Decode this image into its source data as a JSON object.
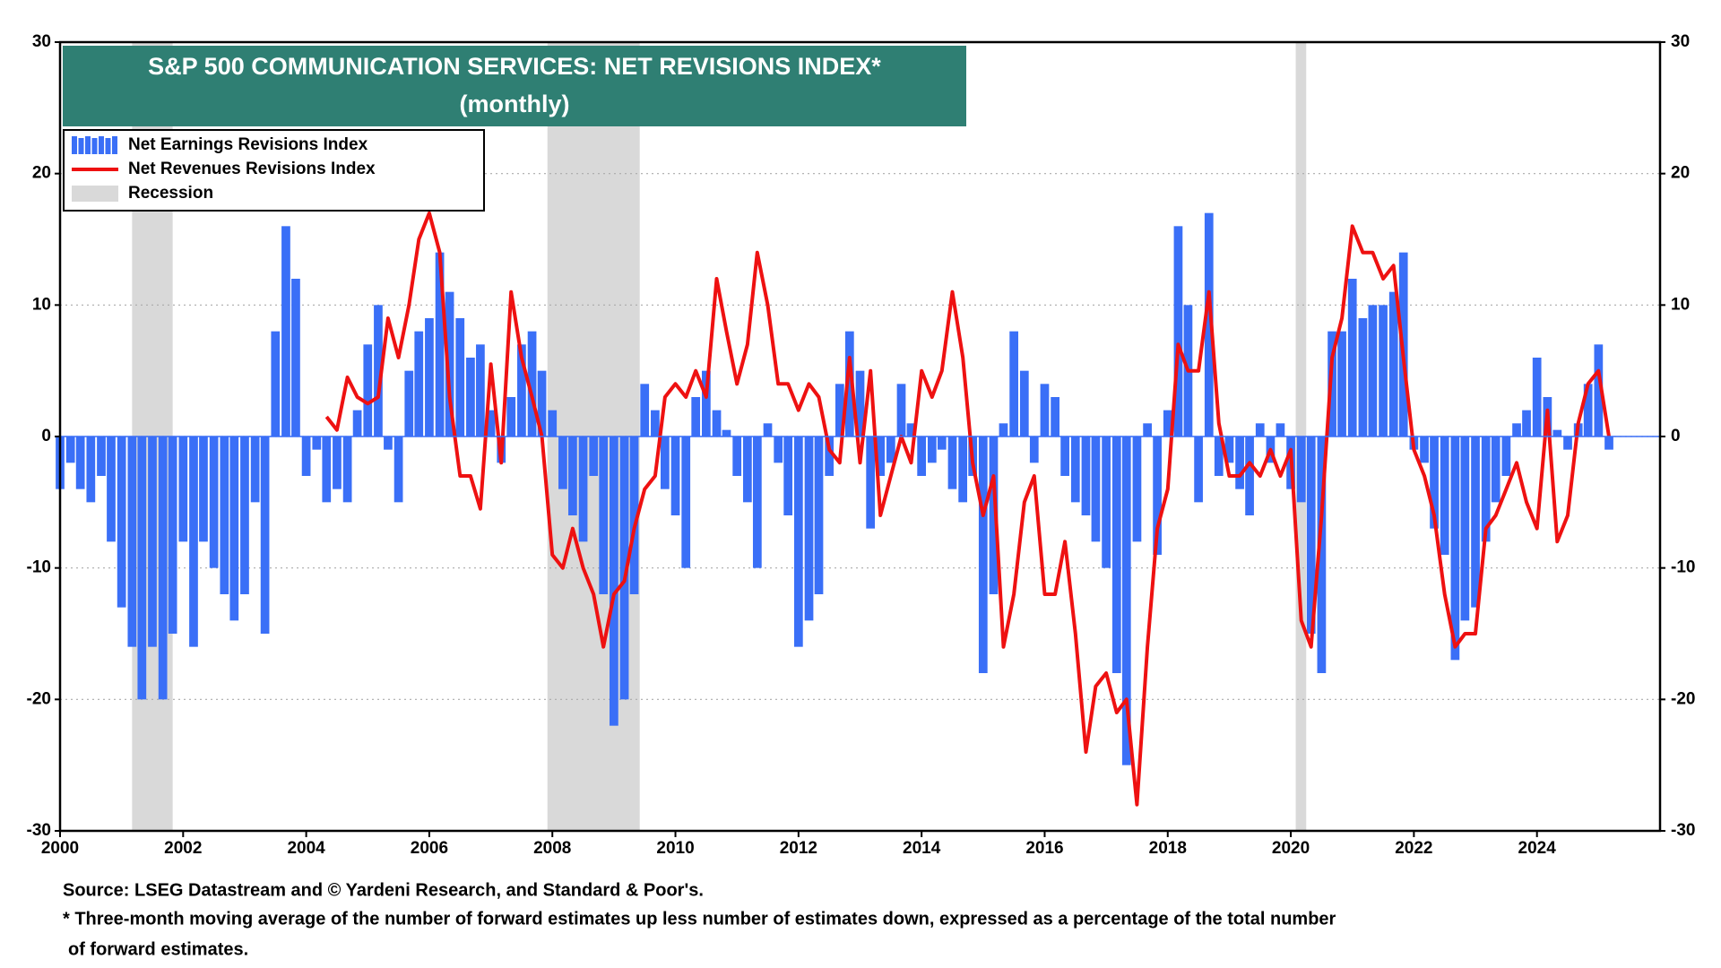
{
  "chart_data": {
    "type": "bar_line",
    "title": "S&P 500 COMMUNICATION SERVICES: NET REVISIONS INDEX*",
    "subtitle": "(monthly)",
    "source": "Source: LSEG Datastream and © Yardeni Research, and Standard & Poor's.",
    "footnote": [
      "* Three-month moving average of the number of forward estimates up less number of estimates down, expressed as a percentage of the total number",
      "of forward estimates."
    ],
    "recession_label": "Recession",
    "recessions": [
      [
        2001.17,
        2001.83
      ],
      [
        2007.92,
        2009.42
      ],
      [
        2020.08,
        2020.25
      ]
    ],
    "recession_color": "#d9d9d9",
    "xlim": [
      2000,
      2026
    ],
    "xticks": [
      2000,
      2002,
      2004,
      2006,
      2008,
      2010,
      2012,
      2014,
      2016,
      2018,
      2020,
      2022,
      2024
    ],
    "ylim": [
      -30,
      30
    ],
    "yticks": [
      -30,
      -20,
      -10,
      0,
      10,
      20,
      30
    ],
    "y2lim": [
      -30,
      30
    ],
    "y2ticks": [
      -30,
      -20,
      -10,
      0,
      10,
      20,
      30
    ],
    "grid": true,
    "x": [
      2000,
      2000.17,
      2000.33,
      2000.5,
      2000.67,
      2000.83,
      2001,
      2001.17,
      2001.33,
      2001.5,
      2001.67,
      2001.83,
      2002,
      2002.17,
      2002.33,
      2002.5,
      2002.67,
      2002.83,
      2003,
      2003.17,
      2003.33,
      2003.5,
      2003.67,
      2003.83,
      2004,
      2004.17,
      2004.33,
      2004.5,
      2004.67,
      2004.83,
      2005,
      2005.17,
      2005.33,
      2005.5,
      2005.67,
      2005.83,
      2006,
      2006.17,
      2006.33,
      2006.5,
      2006.67,
      2006.83,
      2007,
      2007.17,
      2007.33,
      2007.5,
      2007.67,
      2007.83,
      2008,
      2008.17,
      2008.33,
      2008.5,
      2008.67,
      2008.83,
      2009,
      2009.17,
      2009.33,
      2009.5,
      2009.67,
      2009.83,
      2010,
      2010.17,
      2010.33,
      2010.5,
      2010.67,
      2010.83,
      2011,
      2011.17,
      2011.33,
      2011.5,
      2011.67,
      2011.83,
      2012,
      2012.17,
      2012.33,
      2012.5,
      2012.67,
      2012.83,
      2013,
      2013.17,
      2013.33,
      2013.5,
      2013.67,
      2013.83,
      2014,
      2014.17,
      2014.33,
      2014.5,
      2014.67,
      2014.83,
      2015,
      2015.17,
      2015.33,
      2015.5,
      2015.67,
      2015.83,
      2016,
      2016.17,
      2016.33,
      2016.5,
      2016.67,
      2016.83,
      2017,
      2017.17,
      2017.33,
      2017.5,
      2017.67,
      2017.83,
      2018,
      2018.17,
      2018.33,
      2018.5,
      2018.67,
      2018.83,
      2019,
      2019.17,
      2019.33,
      2019.5,
      2019.67,
      2019.83,
      2020,
      2020.17,
      2020.33,
      2020.5,
      2020.67,
      2020.83,
      2021,
      2021.17,
      2021.33,
      2021.5,
      2021.67,
      2021.83,
      2022,
      2022.17,
      2022.33,
      2022.5,
      2022.67,
      2022.83,
      2023,
      2023.17,
      2023.33,
      2023.5,
      2023.67,
      2023.83,
      2024,
      2024.17,
      2024.33,
      2024.5,
      2024.67,
      2024.83,
      2025,
      2025.17
    ],
    "series": [
      {
        "name": "Net Earnings Revisions Index",
        "kind": "bar",
        "color": "#3a6ff7",
        "values": [
          -4,
          -2,
          -4,
          -5,
          -3,
          -8,
          -13,
          -16,
          -20,
          -16,
          -20,
          -15,
          -8,
          -16,
          -8,
          -10,
          -12,
          -14,
          -12,
          -5,
          -15,
          8,
          16,
          12,
          -3,
          -1,
          -5,
          -4,
          -5,
          2,
          7,
          10,
          -1,
          -5,
          5,
          8,
          9,
          14,
          11,
          9,
          6,
          7,
          2,
          -2,
          3,
          7,
          8,
          5,
          2,
          -4,
          -6,
          -8,
          -3,
          -12,
          -22,
          -20,
          -12,
          4,
          2,
          -4,
          -6,
          -10,
          3,
          5,
          2,
          0.5,
          -3,
          -5,
          -10,
          1,
          -2,
          -6,
          -16,
          -14,
          -12,
          -3,
          4,
          8,
          5,
          -7,
          -3,
          -2,
          4,
          1,
          -3,
          -2,
          -1,
          -4,
          -5,
          -3,
          -18,
          -12,
          1,
          8,
          5,
          -2,
          4,
          3,
          -3,
          -5,
          -6,
          -8,
          -10,
          -18,
          -25,
          -8,
          1,
          -9,
          2,
          16,
          10,
          -5,
          17,
          -3,
          -2,
          -4,
          -6,
          1,
          -2,
          1,
          -4,
          -5,
          -15,
          -18,
          8,
          8,
          12,
          9,
          10,
          10,
          11,
          14,
          -1,
          -2,
          -7,
          -9,
          -17,
          -14,
          -13,
          -8,
          -5,
          -3,
          1,
          2,
          6,
          3,
          0.5,
          -1,
          1,
          4,
          7,
          -1
        ]
      },
      {
        "name": "Net Revenues Revisions Index",
        "kind": "line",
        "color": "#ee1111",
        "values": [
          null,
          null,
          null,
          null,
          null,
          null,
          null,
          null,
          null,
          null,
          null,
          null,
          null,
          null,
          null,
          null,
          null,
          null,
          null,
          null,
          null,
          null,
          null,
          null,
          null,
          null,
          1.5,
          0.5,
          4.5,
          3,
          2.5,
          3,
          9,
          6,
          10,
          15,
          17,
          14,
          3,
          -3,
          -3,
          -5.5,
          5.5,
          -2,
          11,
          6,
          3,
          0,
          -9,
          -10,
          -7,
          -10,
          -12,
          -16,
          -12,
          -11,
          -7,
          -4,
          -3,
          3,
          4,
          3,
          5,
          3,
          12,
          8,
          4,
          7,
          14,
          10,
          4,
          4,
          2,
          4,
          3,
          -1,
          -2,
          6,
          -2,
          5,
          -6,
          -3,
          0,
          -2,
          5,
          3,
          5,
          11,
          6,
          -2,
          -6,
          -3,
          -16,
          -12,
          -5,
          -3,
          -12,
          -12,
          -8,
          -15,
          -24,
          -19,
          -18,
          -21,
          -20,
          -28,
          -16,
          -7,
          -4,
          7,
          5,
          5,
          11,
          1,
          -3,
          -3,
          -2,
          -3,
          -1,
          -3,
          -1,
          -14,
          -16,
          -6,
          6,
          9,
          16,
          14,
          14,
          12,
          13,
          6,
          -1,
          -3,
          -6,
          -12,
          -16,
          -15,
          -15,
          -7,
          -6,
          -4,
          -2,
          -5,
          -7,
          2,
          -8,
          -6,
          1,
          4,
          5,
          0
        ]
      }
    ]
  }
}
